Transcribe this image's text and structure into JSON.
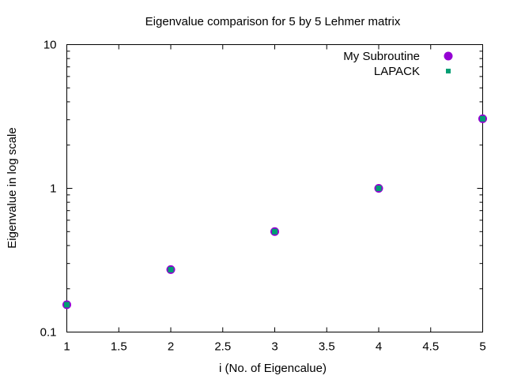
{
  "chart_data": {
    "type": "scatter",
    "title": "Eigenvalue comparison for 5 by 5 Lehmer matrix",
    "xlabel": "i (No. of Eigencalue)",
    "ylabel": "Eigenvalue in log scale",
    "xlim": [
      1,
      5
    ],
    "ylim": [
      0.1,
      10
    ],
    "y_scale": "log",
    "grid": false,
    "legend_position": "top-right",
    "x_ticks": [
      "1",
      "1.5",
      "2",
      "2.5",
      "3",
      "3.5",
      "4",
      "4.5",
      "5"
    ],
    "y_ticks": [
      "0.1",
      "1",
      "10"
    ],
    "series": [
      {
        "name": "My Subroutine",
        "marker": "circle",
        "color": "#9400d3",
        "x": [
          1,
          2,
          3,
          4,
          5
        ],
        "y": [
          0.155,
          0.272,
          0.5,
          1.0,
          3.05
        ]
      },
      {
        "name": "LAPACK",
        "marker": "square",
        "color": "#009e73",
        "x": [
          1,
          2,
          3,
          4,
          5
        ],
        "y": [
          0.155,
          0.272,
          0.5,
          1.0,
          3.05
        ]
      }
    ]
  }
}
